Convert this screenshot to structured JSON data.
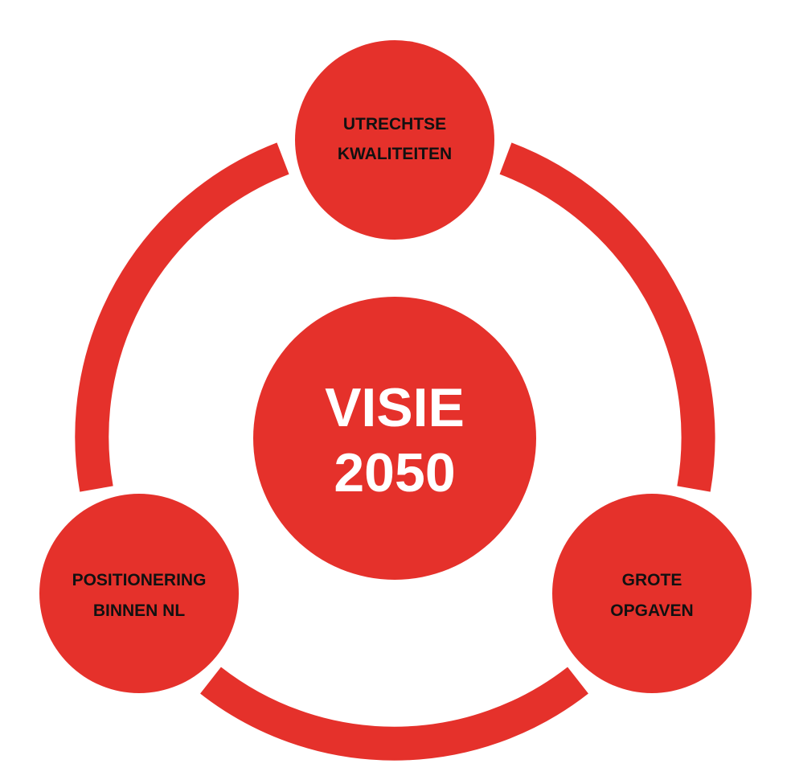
{
  "colors": {
    "accent": "#e5312b",
    "background": "#ffffff",
    "node_text": "#111111",
    "center_text": "#ffffff"
  },
  "center": {
    "line1": "VISIE",
    "line2": "2050"
  },
  "nodes": {
    "top": {
      "line1": "UTRECHTSE",
      "line2": "KWALITEITEN"
    },
    "bottom_left": {
      "line1": "POSITIONERING",
      "line2": "BINNEN NL"
    },
    "bottom_right": {
      "line1": "GROTE",
      "line2": "OPGAVEN"
    }
  }
}
